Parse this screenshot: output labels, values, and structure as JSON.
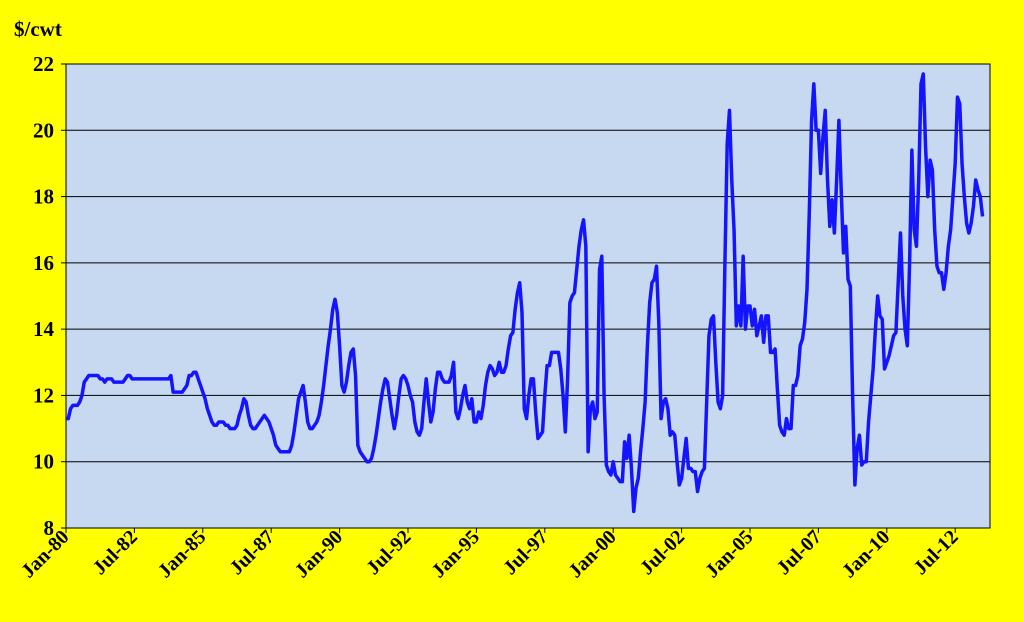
{
  "chart_data": {
    "type": "line",
    "y_label": "$/cwt",
    "color": "#1414ff",
    "grid": true,
    "ylim": [
      8,
      22
    ],
    "yticks": [
      8,
      10,
      12,
      14,
      16,
      18,
      20,
      22
    ],
    "categories": [
      "Jan-80",
      null,
      null,
      null,
      null,
      null,
      null,
      null,
      null,
      null,
      null,
      null,
      null,
      null,
      null,
      null,
      null,
      null,
      null,
      null,
      null,
      null,
      null,
      null,
      null,
      null,
      null,
      null,
      null,
      null,
      "Jul-82",
      null,
      null,
      null,
      null,
      null,
      null,
      null,
      null,
      null,
      null,
      null,
      null,
      null,
      null,
      null,
      null,
      null,
      null,
      null,
      null,
      null,
      null,
      null,
      null,
      null,
      null,
      null,
      null,
      null,
      "Jan-85",
      null,
      null,
      null,
      null,
      null,
      null,
      null,
      null,
      null,
      null,
      null,
      null,
      null,
      null,
      null,
      null,
      null,
      null,
      null,
      null,
      null,
      null,
      null,
      null,
      null,
      null,
      null,
      null,
      null,
      "Jul-87",
      null,
      null,
      null,
      null,
      null,
      null,
      null,
      null,
      null,
      null,
      null,
      null,
      null,
      null,
      null,
      null,
      null,
      null,
      null,
      null,
      null,
      null,
      null,
      null,
      null,
      null,
      null,
      null,
      null,
      "Jan-90",
      null,
      null,
      null,
      null,
      null,
      null,
      null,
      null,
      null,
      null,
      null,
      null,
      null,
      null,
      null,
      null,
      null,
      null,
      null,
      null,
      null,
      null,
      null,
      null,
      null,
      null,
      null,
      null,
      null,
      "Jul-92",
      null,
      null,
      null,
      null,
      null,
      null,
      null,
      null,
      null,
      null,
      null,
      null,
      null,
      null,
      null,
      null,
      null,
      null,
      null,
      null,
      null,
      null,
      null,
      null,
      null,
      null,
      null,
      null,
      null,
      "Jan-95",
      null,
      null,
      null,
      null,
      null,
      null,
      null,
      null,
      null,
      null,
      null,
      null,
      null,
      null,
      null,
      null,
      null,
      null,
      null,
      null,
      null,
      null,
      null,
      null,
      null,
      null,
      null,
      null,
      null,
      "Jul-97",
      null,
      null,
      null,
      null,
      null,
      null,
      null,
      null,
      null,
      null,
      null,
      null,
      null,
      null,
      null,
      null,
      null,
      null,
      null,
      null,
      null,
      null,
      null,
      null,
      null,
      null,
      null,
      null,
      null,
      "Jan-00",
      null,
      null,
      null,
      null,
      null,
      null,
      null,
      null,
      null,
      null,
      null,
      null,
      null,
      null,
      null,
      null,
      null,
      null,
      null,
      null,
      null,
      null,
      null,
      null,
      null,
      null,
      null,
      null,
      null,
      "Jul-02",
      null,
      null,
      null,
      null,
      null,
      null,
      null,
      null,
      null,
      null,
      null,
      null,
      null,
      null,
      null,
      null,
      null,
      null,
      null,
      null,
      null,
      null,
      null,
      null,
      null,
      null,
      null,
      null,
      null,
      "Jan-05",
      null,
      null,
      null,
      null,
      null,
      null,
      null,
      null,
      null,
      null,
      null,
      null,
      null,
      null,
      null,
      null,
      null,
      null,
      null,
      null,
      null,
      null,
      null,
      null,
      null,
      null,
      null,
      null,
      null,
      "Jul-07",
      null,
      null,
      null,
      null,
      null,
      null,
      null,
      null,
      null,
      null,
      null,
      null,
      null,
      null,
      null,
      null,
      null,
      null,
      null,
      null,
      null,
      null,
      null,
      null,
      null,
      null,
      null,
      null,
      null,
      "Jan-10",
      null,
      null,
      null,
      null,
      null,
      null,
      null,
      null,
      null,
      null,
      null,
      null,
      null,
      null,
      null,
      null,
      null,
      null,
      null,
      null,
      null,
      null,
      null,
      null,
      null,
      null,
      null,
      null,
      null,
      "Jul-12",
      null,
      null,
      null,
      null,
      null,
      null,
      null,
      null,
      null,
      null,
      null,
      null
    ],
    "values": [
      11.3,
      11.3,
      11.6,
      11.7,
      11.7,
      11.7,
      11.8,
      12.0,
      12.4,
      12.5,
      12.6,
      12.6,
      12.6,
      12.6,
      12.6,
      12.5,
      12.5,
      12.4,
      12.5,
      12.5,
      12.5,
      12.4,
      12.4,
      12.4,
      12.4,
      12.4,
      12.5,
      12.6,
      12.6,
      12.5,
      12.5,
      12.5,
      12.5,
      12.5,
      12.5,
      12.5,
      12.5,
      12.5,
      12.5,
      12.5,
      12.5,
      12.5,
      12.5,
      12.5,
      12.5,
      12.5,
      12.6,
      12.1,
      12.1,
      12.1,
      12.1,
      12.1,
      12.2,
      12.3,
      12.6,
      12.6,
      12.7,
      12.7,
      12.5,
      12.3,
      12.1,
      11.9,
      11.6,
      11.4,
      11.2,
      11.1,
      11.1,
      11.2,
      11.2,
      11.2,
      11.1,
      11.1,
      11.0,
      11.0,
      11.0,
      11.1,
      11.4,
      11.6,
      11.9,
      11.8,
      11.4,
      11.1,
      11.0,
      11.0,
      11.1,
      11.2,
      11.3,
      11.4,
      11.3,
      11.2,
      11.0,
      10.8,
      10.5,
      10.4,
      10.3,
      10.3,
      10.3,
      10.3,
      10.3,
      10.5,
      10.9,
      11.4,
      11.9,
      12.1,
      12.3,
      11.8,
      11.2,
      11.0,
      11.0,
      11.1,
      11.2,
      11.4,
      11.8,
      12.3,
      12.9,
      13.5,
      14.0,
      14.6,
      14.9,
      14.5,
      13.5,
      12.3,
      12.1,
      12.4,
      12.9,
      13.3,
      13.4,
      12.6,
      10.5,
      10.3,
      10.2,
      10.1,
      10.0,
      10.0,
      10.1,
      10.4,
      10.8,
      11.3,
      11.8,
      12.2,
      12.5,
      12.4,
      11.9,
      11.4,
      11.0,
      11.4,
      12.0,
      12.5,
      12.6,
      12.5,
      12.3,
      12.0,
      11.8,
      11.2,
      10.9,
      10.8,
      11.0,
      11.8,
      12.5,
      11.8,
      11.2,
      11.5,
      12.2,
      12.7,
      12.7,
      12.5,
      12.4,
      12.4,
      12.4,
      12.6,
      13.0,
      11.5,
      11.3,
      11.6,
      12.0,
      12.3,
      11.8,
      11.6,
      11.9,
      11.2,
      11.2,
      11.5,
      11.3,
      11.7,
      12.3,
      12.7,
      12.9,
      12.8,
      12.6,
      12.7,
      13.0,
      12.7,
      12.7,
      12.9,
      13.4,
      13.8,
      13.9,
      14.6,
      15.1,
      15.4,
      14.5,
      11.6,
      11.3,
      12.0,
      12.5,
      12.5,
      11.5,
      10.7,
      10.8,
      10.9,
      12.0,
      12.9,
      12.9,
      13.3,
      13.3,
      13.3,
      13.3,
      12.8,
      12.0,
      10.9,
      12.5,
      14.8,
      15.0,
      15.1,
      15.8,
      16.5,
      17.0,
      17.3,
      16.5,
      10.3,
      11.6,
      11.8,
      11.3,
      11.5,
      15.8,
      16.2,
      12.0,
      9.9,
      9.7,
      9.6,
      10.0,
      9.6,
      9.5,
      9.4,
      9.4,
      10.6,
      10.1,
      10.8,
      9.8,
      8.5,
      9.2,
      9.5,
      10.3,
      11.0,
      11.8,
      13.5,
      14.8,
      15.4,
      15.5,
      15.9,
      14.2,
      11.3,
      11.8,
      11.9,
      11.6,
      10.8,
      10.9,
      10.8,
      10.0,
      9.3,
      9.5,
      10.1,
      10.7,
      9.8,
      9.8,
      9.7,
      9.7,
      9.1,
      9.5,
      9.7,
      9.8,
      11.8,
      13.8,
      14.3,
      14.4,
      13.0,
      11.8,
      11.6,
      12.0,
      16.0,
      19.6,
      20.6,
      18.5,
      17.0,
      14.1,
      14.7,
      14.1,
      16.2,
      14.0,
      14.7,
      14.7,
      14.1,
      14.6,
      13.8,
      14.1,
      14.4,
      13.6,
      14.4,
      14.4,
      13.3,
      13.3,
      13.4,
      12.2,
      11.1,
      10.9,
      10.8,
      11.3,
      11.0,
      11.0,
      12.3,
      12.3,
      12.6,
      13.5,
      13.7,
      14.2,
      15.2,
      17.5,
      20.3,
      21.4,
      20.0,
      20.0,
      18.7,
      19.8,
      20.6,
      18.5,
      17.1,
      17.9,
      16.9,
      18.5,
      20.3,
      18.2,
      16.3,
      17.1,
      15.5,
      15.3,
      12.0,
      9.3,
      10.4,
      10.8,
      9.9,
      10.0,
      10.0,
      11.2,
      12.0,
      12.8,
      14.0,
      15.0,
      14.4,
      14.3,
      12.8,
      13.0,
      13.2,
      13.5,
      13.8,
      13.9,
      15.4,
      16.9,
      15.0,
      14.0,
      13.5,
      16.0,
      19.4,
      17.0,
      16.5,
      18.5,
      21.4,
      21.7,
      19.5,
      18.0,
      19.1,
      18.8,
      17.0,
      15.9,
      15.7,
      15.7,
      15.2,
      15.7,
      16.5,
      17.0,
      18.0,
      19.0,
      21.0,
      20.8,
      19.0,
      18.0,
      17.2,
      16.9,
      17.2,
      17.7,
      18.5,
      18.2,
      18.0,
      17.4
    ]
  }
}
